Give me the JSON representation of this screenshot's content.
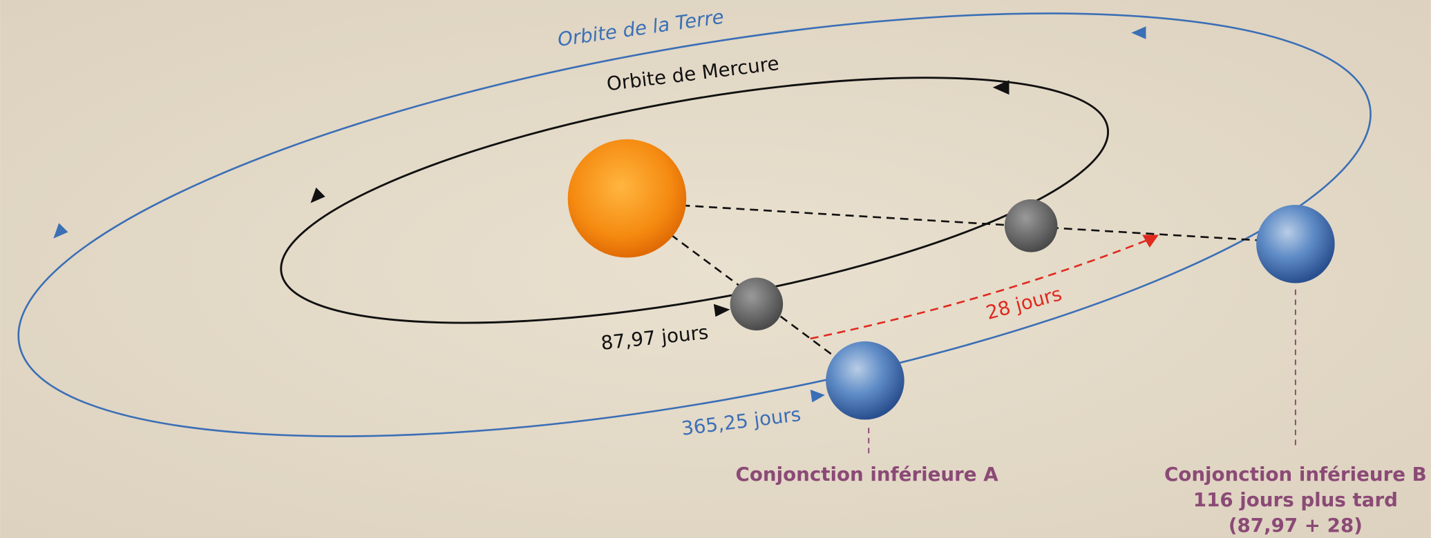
{
  "labels": {
    "earth_orbit": "Orbite de la Terre",
    "mercury_orbit": "Orbite de Mercure",
    "mercury_period": "87,97 jours",
    "earth_period": "365,25 jours",
    "gap": "28 jours"
  },
  "conjunction_a": {
    "title": "Conjonction inférieure A"
  },
  "conjunction_b": {
    "title": "Conjonction inférieure B",
    "line2": "116 jours plus tard",
    "line3": "(87,97 + 28)"
  }
}
